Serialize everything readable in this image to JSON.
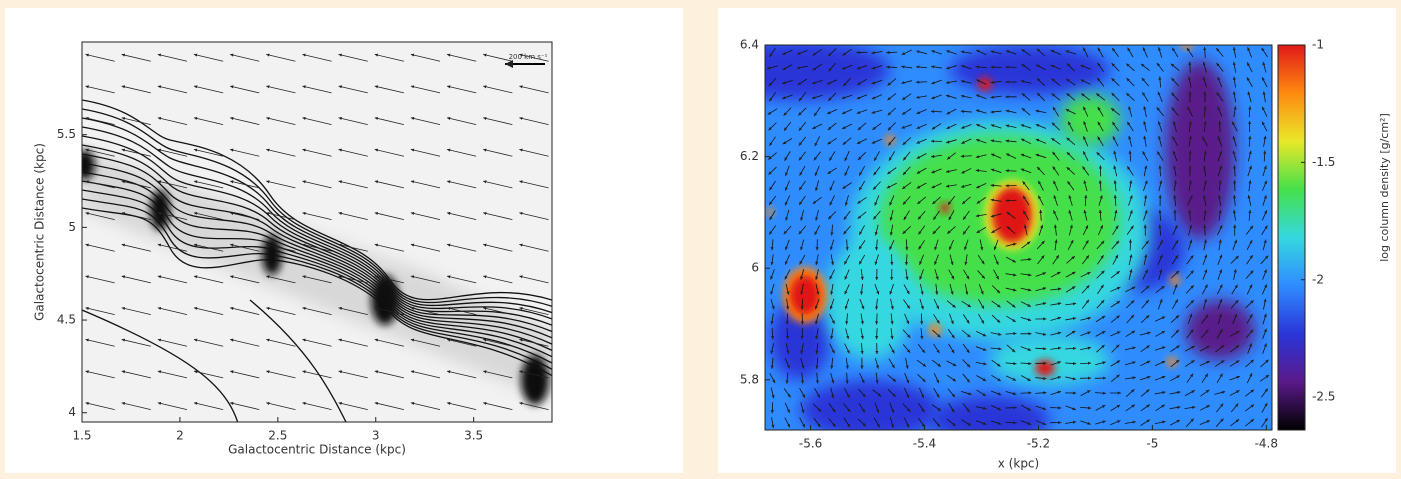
{
  "chart_data": [
    {
      "type": "vector-field",
      "xlabel": "Galactocentric Distance (kpc)",
      "ylabel": "Galactocentric Distance (kpc)",
      "annotation": "200 km s⁻¹",
      "xlim": [
        1.5,
        3.9
      ],
      "xticks": [
        1.5,
        2,
        2.5,
        3,
        3.5
      ],
      "ylim": [
        3.95,
        6.0
      ],
      "yticks": [
        4,
        4.5,
        5,
        5.5
      ]
    },
    {
      "type": "heatmap",
      "xlabel": "x (kpc)",
      "colorbar_label": "log column density [g/cm²]",
      "xlim": [
        -5.68,
        -4.79
      ],
      "xticks": [
        -5.6,
        -5.4,
        -5.2,
        -5,
        -4.8
      ],
      "ylim": [
        5.71,
        6.4
      ],
      "yticks": [
        5.8,
        6,
        6.2,
        6.4
      ],
      "clim": [
        -2.64,
        -1
      ],
      "cticks": [
        -2.5,
        -2,
        -1.5,
        -1
      ],
      "colormap": [
        "#000000",
        "#5a1a8a",
        "#2a35d8",
        "#2f8cff",
        "#35d8e0",
        "#45e04a",
        "#e8e828",
        "#ff8a10",
        "#e01818"
      ]
    }
  ]
}
